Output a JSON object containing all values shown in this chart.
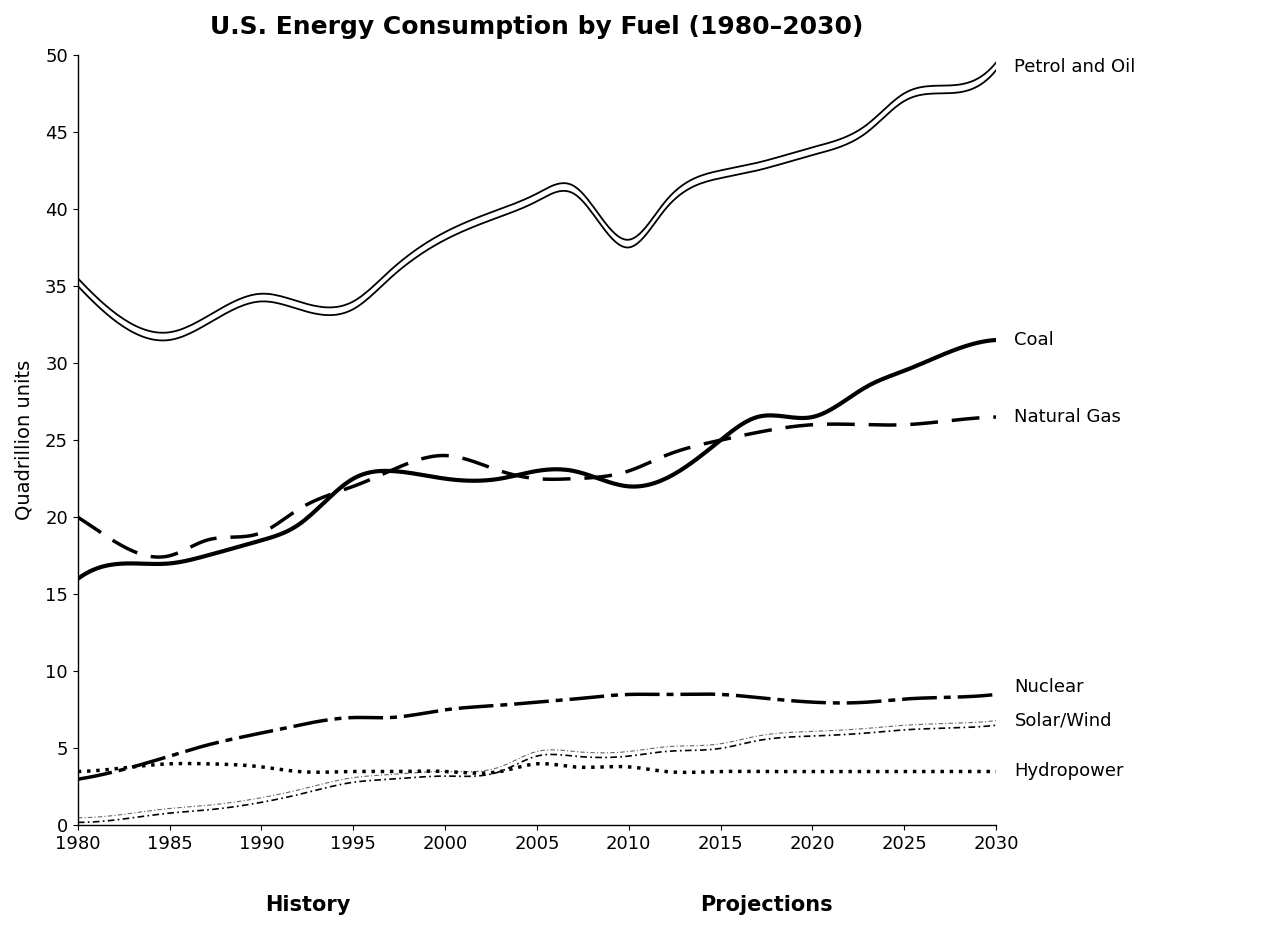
{
  "title": "U.S. Energy Consumption by Fuel (1980–2030)",
  "ylabel": "Quadrillion units",
  "xlabel_history": "History",
  "xlabel_projections": "Projections",
  "years": [
    1980,
    1983,
    1985,
    1987,
    1990,
    1992,
    1995,
    1997,
    2000,
    2003,
    2005,
    2007,
    2010,
    2012,
    2015,
    2017,
    2020,
    2023,
    2025,
    2027,
    2030
  ],
  "petrol_and_oil_lo": [
    35.0,
    32.0,
    31.5,
    32.5,
    34.0,
    33.5,
    33.5,
    35.5,
    38.0,
    39.5,
    40.5,
    41.0,
    37.5,
    40.0,
    42.0,
    42.5,
    43.5,
    45.0,
    47.0,
    47.5,
    49.0
  ],
  "petrol_and_oil_hi": [
    35.5,
    32.5,
    32.0,
    33.0,
    34.5,
    34.0,
    34.0,
    36.0,
    38.5,
    40.0,
    41.0,
    41.5,
    38.0,
    40.5,
    42.5,
    43.0,
    44.0,
    45.5,
    47.5,
    48.0,
    49.5
  ],
  "coal": [
    16.0,
    17.0,
    17.0,
    17.5,
    18.5,
    19.5,
    22.5,
    23.0,
    22.5,
    22.5,
    23.0,
    23.0,
    22.0,
    22.5,
    25.0,
    26.5,
    26.5,
    28.5,
    29.5,
    30.5,
    31.5
  ],
  "natural_gas": [
    20.0,
    17.8,
    17.5,
    18.5,
    19.0,
    20.5,
    22.0,
    23.0,
    24.0,
    23.0,
    22.5,
    22.5,
    23.0,
    24.0,
    25.0,
    25.5,
    26.0,
    26.0,
    26.0,
    26.2,
    26.5
  ],
  "nuclear": [
    3.0,
    3.8,
    4.5,
    5.2,
    6.0,
    6.5,
    7.0,
    7.0,
    7.5,
    7.8,
    8.0,
    8.2,
    8.5,
    8.5,
    8.5,
    8.3,
    8.0,
    8.0,
    8.2,
    8.3,
    8.5
  ],
  "solar_wind": [
    0.2,
    0.5,
    0.8,
    1.0,
    1.5,
    2.0,
    2.8,
    3.0,
    3.2,
    3.5,
    4.5,
    4.5,
    4.5,
    4.8,
    5.0,
    5.5,
    5.8,
    6.0,
    6.2,
    6.3,
    6.5
  ],
  "hydropower": [
    3.5,
    3.8,
    4.0,
    4.0,
    3.8,
    3.5,
    3.5,
    3.5,
    3.5,
    3.5,
    4.0,
    3.8,
    3.8,
    3.5,
    3.5,
    3.5,
    3.5,
    3.5,
    3.5,
    3.5,
    3.5
  ],
  "ylim": [
    0,
    50
  ],
  "xlim": [
    1980,
    2030
  ],
  "yticks": [
    0,
    5,
    10,
    15,
    20,
    25,
    30,
    35,
    40,
    45,
    50
  ],
  "xticks": [
    1980,
    1985,
    1990,
    1995,
    2000,
    2005,
    2010,
    2015,
    2020,
    2025,
    2030
  ],
  "history_end": 2005,
  "bg_color": "#ffffff",
  "line_color": "#000000",
  "title_fontsize": 18,
  "label_fontsize": 14,
  "tick_fontsize": 13,
  "legend_fontsize": 13
}
